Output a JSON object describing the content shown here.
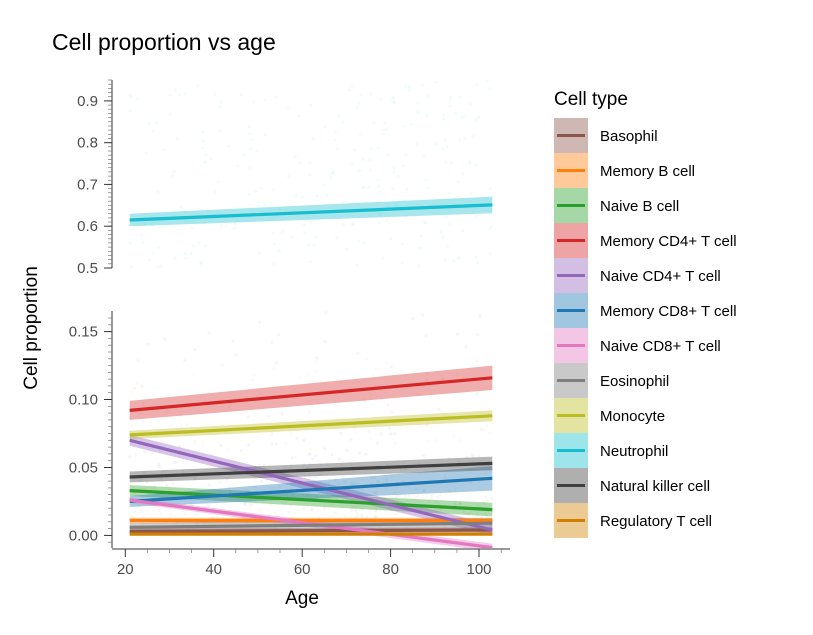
{
  "chart_data": {
    "type": "line",
    "title": "Cell proportion vs age",
    "xlabel": "Age",
    "ylabel": "Cell proportion",
    "legend_title": "Cell type",
    "legend_position": "right",
    "grid": false,
    "xlim": [
      17,
      107
    ],
    "x_ticks": [
      20,
      40,
      60,
      80,
      100
    ],
    "panels": {
      "upper": {
        "ylim": [
          0.5,
          0.95
        ],
        "y_ticks": [
          0.5,
          0.6,
          0.7,
          0.8,
          0.9
        ],
        "y_tick_labels": [
          "0.5",
          "0.6",
          "0.7",
          "0.8",
          "0.9"
        ]
      },
      "lower": {
        "ylim": [
          -0.01,
          0.16
        ],
        "y_ticks": [
          0.0,
          0.05,
          0.1,
          0.15
        ],
        "y_tick_labels": [
          "0.00",
          "0.05",
          "0.10",
          "0.15"
        ]
      }
    },
    "series": [
      {
        "name": "Basophil",
        "color": "#8c564b",
        "panel": "lower",
        "x": [
          21,
          103
        ],
        "y": [
          0.003,
          0.004
        ],
        "band": [
          0.002,
          0.002
        ]
      },
      {
        "name": "Memory B cell",
        "color": "#ff7f0e",
        "panel": "lower",
        "x": [
          21,
          103
        ],
        "y": [
          0.011,
          0.011
        ],
        "band": [
          0.002,
          0.002
        ]
      },
      {
        "name": "Naive B cell",
        "color": "#2ca02c",
        "panel": "lower",
        "x": [
          21,
          103
        ],
        "y": [
          0.033,
          0.019
        ],
        "band": [
          0.004,
          0.005
        ]
      },
      {
        "name": "Memory CD4+ T cell",
        "color": "#d62728",
        "panel": "lower",
        "x": [
          21,
          103
        ],
        "y": [
          0.092,
          0.116
        ],
        "band": [
          0.007,
          0.009
        ]
      },
      {
        "name": "Naive CD4+ T cell",
        "color": "#9467bd",
        "panel": "lower",
        "x": [
          21,
          103
        ],
        "y": [
          0.07,
          0.004
        ],
        "band": [
          0.004,
          0.004
        ]
      },
      {
        "name": "Memory CD8+ T cell",
        "color": "#1f77b4",
        "panel": "lower",
        "x": [
          21,
          103
        ],
        "y": [
          0.025,
          0.042
        ],
        "band": [
          0.004,
          0.009
        ]
      },
      {
        "name": "Naive CD8+ T cell",
        "color": "#e377c2",
        "panel": "lower",
        "x": [
          21,
          103
        ],
        "y": [
          0.026,
          -0.009
        ],
        "band": [
          0.002,
          0.003
        ]
      },
      {
        "name": "Eosinophil",
        "color": "#7f7f7f",
        "panel": "lower",
        "x": [
          21,
          103
        ],
        "y": [
          0.006,
          0.009
        ],
        "band": [
          0.003,
          0.004
        ]
      },
      {
        "name": "Monocyte",
        "color": "#bcbd22",
        "panel": "lower",
        "x": [
          21,
          103
        ],
        "y": [
          0.074,
          0.088
        ],
        "band": [
          0.003,
          0.004
        ]
      },
      {
        "name": "Neutrophil",
        "color": "#17becf",
        "panel": "upper",
        "x": [
          21,
          103
        ],
        "y": [
          0.615,
          0.651
        ],
        "band": [
          0.015,
          0.02
        ]
      },
      {
        "name": "Natural killer cell",
        "color": "#404040",
        "panel": "lower",
        "x": [
          21,
          103
        ],
        "y": [
          0.043,
          0.053
        ],
        "band": [
          0.004,
          0.005
        ]
      },
      {
        "name": "Regulatory T cell",
        "color": "#d08000",
        "panel": "lower",
        "x": [
          21,
          103
        ],
        "y": [
          0.001,
          0.001
        ],
        "band": [
          0.001,
          0.001
        ]
      }
    ]
  }
}
